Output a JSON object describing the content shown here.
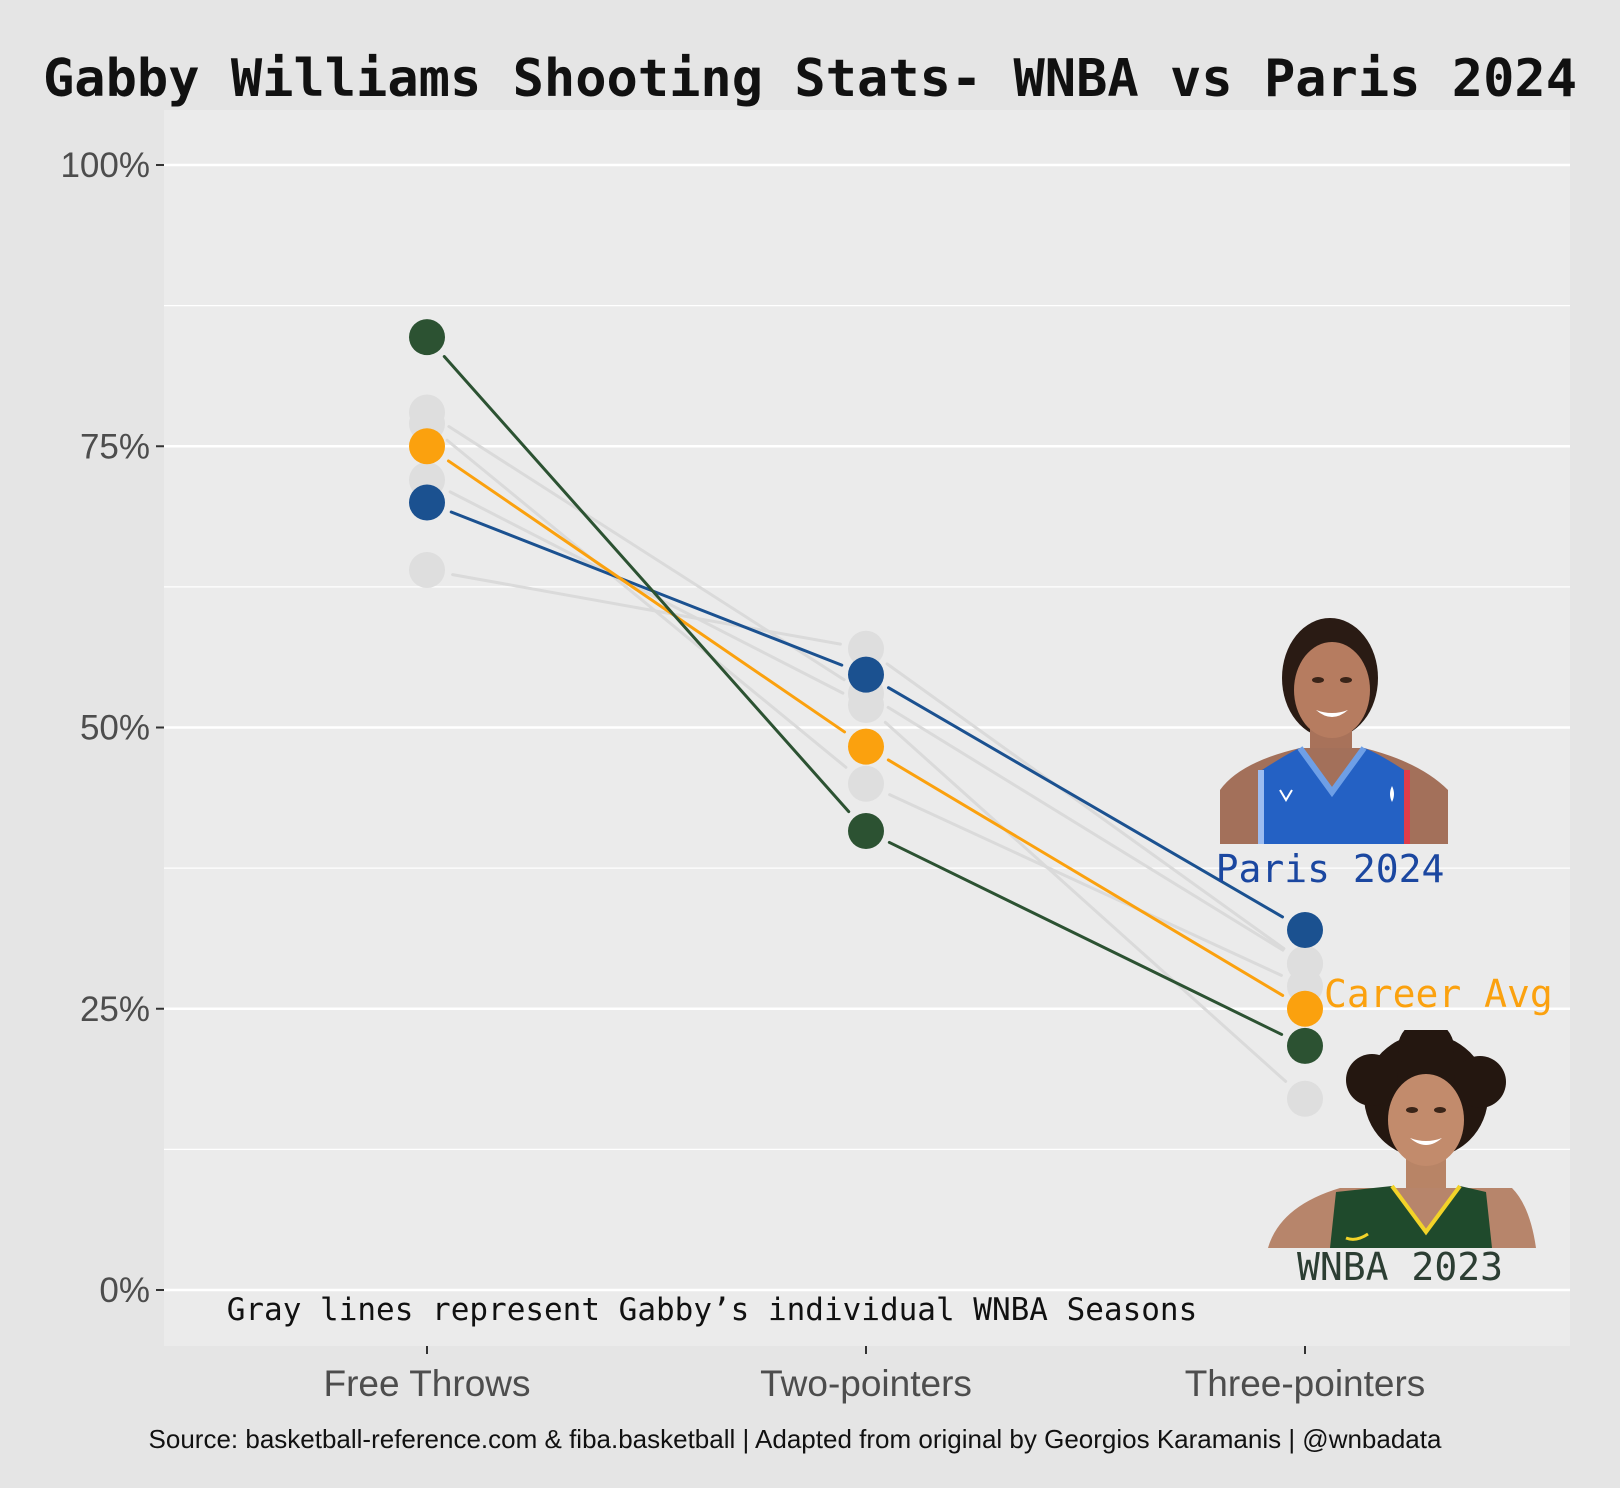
{
  "chart_data": {
    "type": "line",
    "title": "Gabby Williams Shooting Stats- WNBA vs Paris 2024",
    "caption": "Source: basketball-reference.com & fiba.basketball | Adapted from original by Georgios Karamanis | @wnbadata",
    "note": "Gray lines represent Gabby’s individual WNBA Seasons",
    "categories": [
      "Free Throws",
      "Two-pointers",
      "Three-pointers"
    ],
    "ylim": [
      -0.05,
      1.05
    ],
    "y_ticks": [
      {
        "value": 0,
        "label": "0%"
      },
      {
        "value": 0.25,
        "label": "25%"
      },
      {
        "value": 0.5,
        "label": "50%"
      },
      {
        "value": 0.75,
        "label": "75%"
      },
      {
        "value": 1.0,
        "label": "100%"
      }
    ],
    "y_minor_ticks": [
      0.125,
      0.375,
      0.625,
      0.875
    ],
    "grid": true,
    "gray_series": [
      [
        0.78,
        0.53,
        0.29
      ],
      [
        0.77,
        0.45,
        0.27
      ],
      [
        0.72,
        0.52,
        0.17
      ],
      [
        0.64,
        0.57,
        0.29
      ]
    ],
    "series": [
      {
        "values": [
          0.7,
          0.547,
          0.32
        ],
        "color": "#1b5190",
        "label": "Paris 2024",
        "label_color": "#1b47a0"
      },
      {
        "values": [
          0.75,
          0.483,
          0.25
        ],
        "color": "#fba10e",
        "label": "Career Avg",
        "label_color": "#fba10e"
      },
      {
        "values": [
          0.847,
          0.408,
          0.217
        ],
        "color": "#2c5232",
        "label": "WNBA 2023",
        "label_color": "#2c3e33"
      }
    ],
    "images": [
      {
        "name": "paris-2024-photo",
        "description": "Player in France jersey"
      },
      {
        "name": "wnba-2023-photo",
        "description": "Player in Seattle Storm jersey"
      }
    ],
    "colors": {
      "background": "#e5e5e5",
      "panel": "#ebebeb",
      "grid": "#ffffff",
      "gray_line": "#dadada",
      "gray_point": "#dedede",
      "axis_text": "#4d4d4d"
    }
  }
}
